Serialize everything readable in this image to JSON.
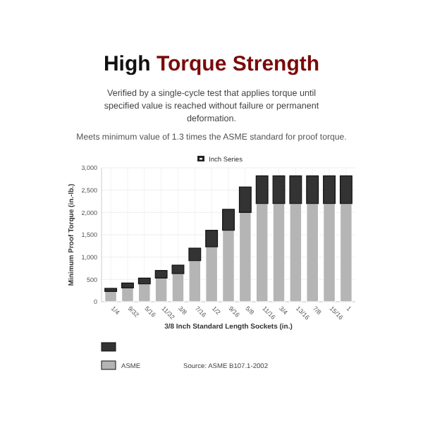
{
  "chart_data": {
    "type": "bar",
    "title": "High Torque Strength",
    "subtitle": "Verified by a single-cycle test that applies torque until specified value is reached without failure or permanent deformation.",
    "annotations": [
      "Meets minimum value of 1.3 times the ASME standard for proof torque.",
      "Source: ASME B107.1-2002"
    ],
    "legend_title": "Inch Series",
    "xlabel": "3/8 Inch Standard Length Sockets (in.)",
    "ylabel": "Minimum Proof Torque (in.-lb.)",
    "categories": [
      "1/4",
      "9/32",
      "5/16",
      "11/32",
      "3/8",
      "7/16",
      "1/2",
      "9/16",
      "5/8",
      "11/16",
      "3/4",
      "13/16",
      "7/8",
      "15/16",
      "1"
    ],
    "stacked": true,
    "series": [
      {
        "name": "ASME",
        "color": "#b5b5b5",
        "values": [
          230,
          310,
          400,
          530,
          630,
          920,
          1230,
          1600,
          2000,
          2200,
          2200,
          2200,
          2200,
          2200,
          2200
        ]
      },
      {
        "color": "#333333",
        "values": [
          70,
          110,
          130,
          170,
          190,
          280,
          370,
          470,
          570,
          620,
          620,
          620,
          620,
          620,
          620
        ]
      }
    ],
    "ylim": [
      0,
      3000
    ],
    "yticks": [
      {
        "value": 0,
        "label": "0"
      },
      {
        "value": 500,
        "label": "500"
      },
      {
        "value": 1000,
        "label": "1,000"
      },
      {
        "value": 1500,
        "label": "1,500"
      },
      {
        "value": 2000,
        "label": "2,000"
      },
      {
        "value": 2500,
        "label": "2,500"
      },
      {
        "value": 3000,
        "label": "3,000"
      }
    ],
    "grid": true,
    "legend": "bottom"
  }
}
